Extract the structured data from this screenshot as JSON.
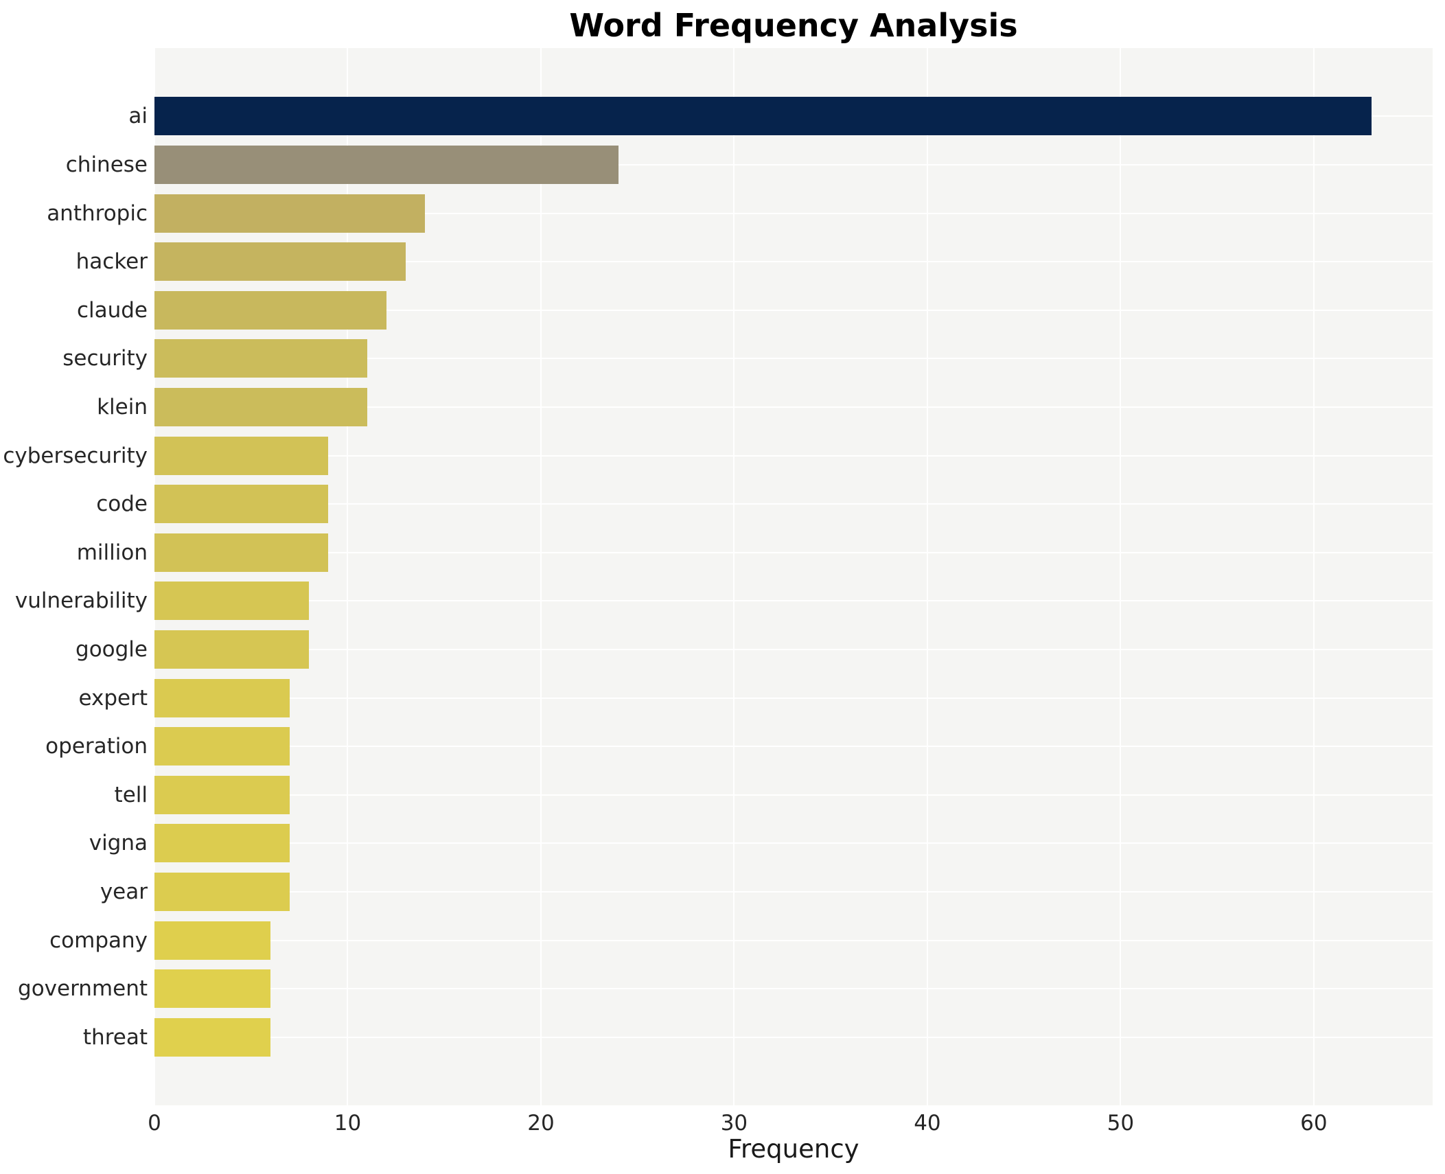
{
  "title": "Word Frequency Analysis",
  "chart_data": {
    "type": "bar",
    "orientation": "horizontal",
    "title": "Word Frequency Analysis",
    "xlabel": "Frequency",
    "ylabel": "",
    "categories": [
      "ai",
      "chinese",
      "anthropic",
      "hacker",
      "claude",
      "security",
      "klein",
      "cybersecurity",
      "code",
      "million",
      "vulnerability",
      "google",
      "expert",
      "operation",
      "tell",
      "vigna",
      "year",
      "company",
      "government",
      "threat"
    ],
    "values": [
      63,
      24,
      14,
      13,
      12,
      11,
      11,
      9,
      9,
      9,
      8,
      8,
      7,
      7,
      7,
      7,
      7,
      6,
      6,
      6
    ],
    "bar_colors": [
      "#06234c",
      "#988f78",
      "#c2b061",
      "#c5b45f",
      "#c8b85d",
      "#cbbc5b",
      "#cbbc5b",
      "#d2c256",
      "#d2c256",
      "#d2c256",
      "#d6c653",
      "#d6c653",
      "#daca50",
      "#dbcb50",
      "#dbcb50",
      "#dccc4f",
      "#dccc4f",
      "#dfcf4d",
      "#e0d04d",
      "#e0d04d"
    ],
    "xticks": [
      0,
      10,
      20,
      30,
      40,
      50,
      60
    ],
    "xlim": [
      0,
      66.15
    ],
    "grid": true,
    "legend_position": "none",
    "plot_background": "#f5f5f3",
    "grid_color": "#ffffff"
  }
}
